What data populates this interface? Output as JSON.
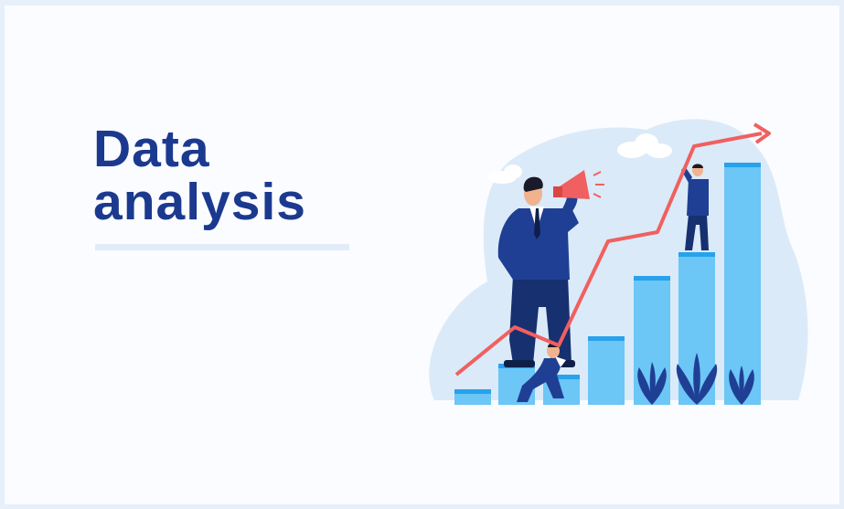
{
  "headline": {
    "line1": "Data",
    "line2": "analysis"
  },
  "colors": {
    "title": "#1b3a8f",
    "bar": "#6cc6f6",
    "bar_top": "#27a2ec",
    "trend": "#f06060",
    "suit": "#1f3f94",
    "blob": "#dbeaf8"
  },
  "illustration": {
    "bar_count": 7,
    "trend_direction": "up"
  }
}
